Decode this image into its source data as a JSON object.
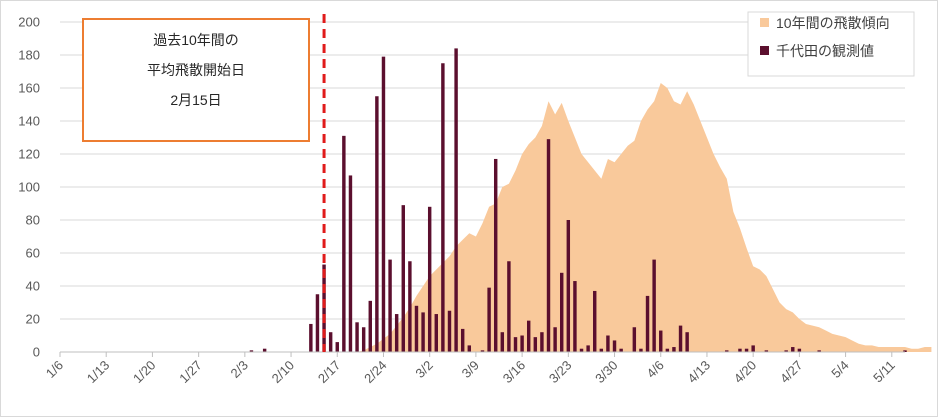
{
  "chart_data": {
    "type": "bar",
    "ylim": [
      0,
      200
    ],
    "yticks": [
      0,
      20,
      40,
      60,
      80,
      100,
      120,
      140,
      160,
      180,
      200
    ],
    "grid": true,
    "legend_position": "top-right",
    "x_start_label": "1/6",
    "x_tick_labels": [
      "1/6",
      "1/13",
      "1/20",
      "1/27",
      "2/3",
      "2/10",
      "2/17",
      "2/24",
      "3/2",
      "3/9",
      "3/16",
      "3/23",
      "3/30",
      "4/6",
      "4/13",
      "4/20",
      "4/27",
      "5/4",
      "5/11"
    ],
    "series": [
      {
        "name": "10年間の飛散傾向",
        "kind": "area",
        "color": "#f9c99b",
        "values": [
          0,
          0,
          0,
          0,
          0,
          0,
          0,
          0,
          0,
          0,
          0,
          0,
          0,
          0,
          0,
          0,
          0,
          0,
          0,
          0,
          0,
          0,
          0,
          0,
          0,
          0,
          0,
          0,
          0,
          0,
          0,
          0,
          0,
          0,
          0,
          0,
          0,
          0,
          0,
          0,
          0,
          0,
          0,
          0,
          0,
          0,
          1,
          3,
          5,
          8,
          11,
          16,
          21,
          27,
          34,
          40,
          46,
          50,
          54,
          58,
          64,
          68,
          72,
          70,
          78,
          88,
          90,
          100,
          102,
          110,
          120,
          126,
          130,
          137,
          152,
          144,
          151,
          140,
          130,
          120,
          115,
          110,
          105,
          117,
          115,
          120,
          125,
          128,
          140,
          147,
          152,
          163,
          160,
          152,
          150,
          158,
          150,
          140,
          130,
          120,
          112,
          105,
          85,
          75,
          63,
          52,
          50,
          46,
          38,
          30,
          26,
          24,
          20,
          17,
          16,
          15,
          13,
          11,
          10,
          9,
          7,
          5,
          4,
          4,
          3,
          3,
          3,
          3,
          3,
          2,
          2,
          3,
          3
        ],
        "note": "one value per day starting 1/6"
      },
      {
        "name": "千代田の観測値",
        "kind": "bar",
        "color": "#5b0f2e",
        "values": [
          0,
          0,
          0,
          0,
          0,
          0,
          0,
          0,
          0,
          0,
          0,
          0,
          0,
          0,
          0,
          0,
          0,
          0,
          0,
          0,
          0,
          0,
          0,
          0,
          0,
          0,
          0,
          0,
          0,
          1,
          0,
          2,
          0,
          0,
          0,
          0,
          0,
          0,
          17,
          35,
          53,
          12,
          6,
          131,
          107,
          18,
          15,
          31,
          155,
          179,
          56,
          23,
          89,
          55,
          28,
          24,
          88,
          23,
          175,
          25,
          184,
          14,
          4,
          0,
          1,
          39,
          117,
          12,
          55,
          9,
          10,
          19,
          9,
          12,
          129,
          15,
          48,
          80,
          43,
          2,
          4,
          37,
          2,
          10,
          7,
          2,
          0,
          15,
          2,
          34,
          56,
          13,
          2,
          3,
          16,
          12,
          0,
          0,
          0,
          0,
          0,
          1,
          0,
          2,
          2,
          4,
          0,
          1,
          0,
          0,
          1,
          3,
          2,
          0,
          0,
          1,
          0,
          0,
          0,
          0,
          0,
          0,
          0,
          0,
          0,
          0,
          0,
          0,
          1,
          0,
          0,
          0,
          0
        ],
        "note": "one value per day starting 1/6"
      }
    ]
  },
  "annotation": {
    "line1": "過去10年間の",
    "line2": "平均飛散開始日",
    "line3": "2月15日",
    "marker_label": "2/15",
    "marker_color": "#e01b1b",
    "box_border_color": "#ed7d31"
  },
  "legend": {
    "items": [
      {
        "label": "10年間の飛散傾向",
        "color": "#f9c99b"
      },
      {
        "label": "千代田の観測値",
        "color": "#5b0f2e"
      }
    ]
  }
}
